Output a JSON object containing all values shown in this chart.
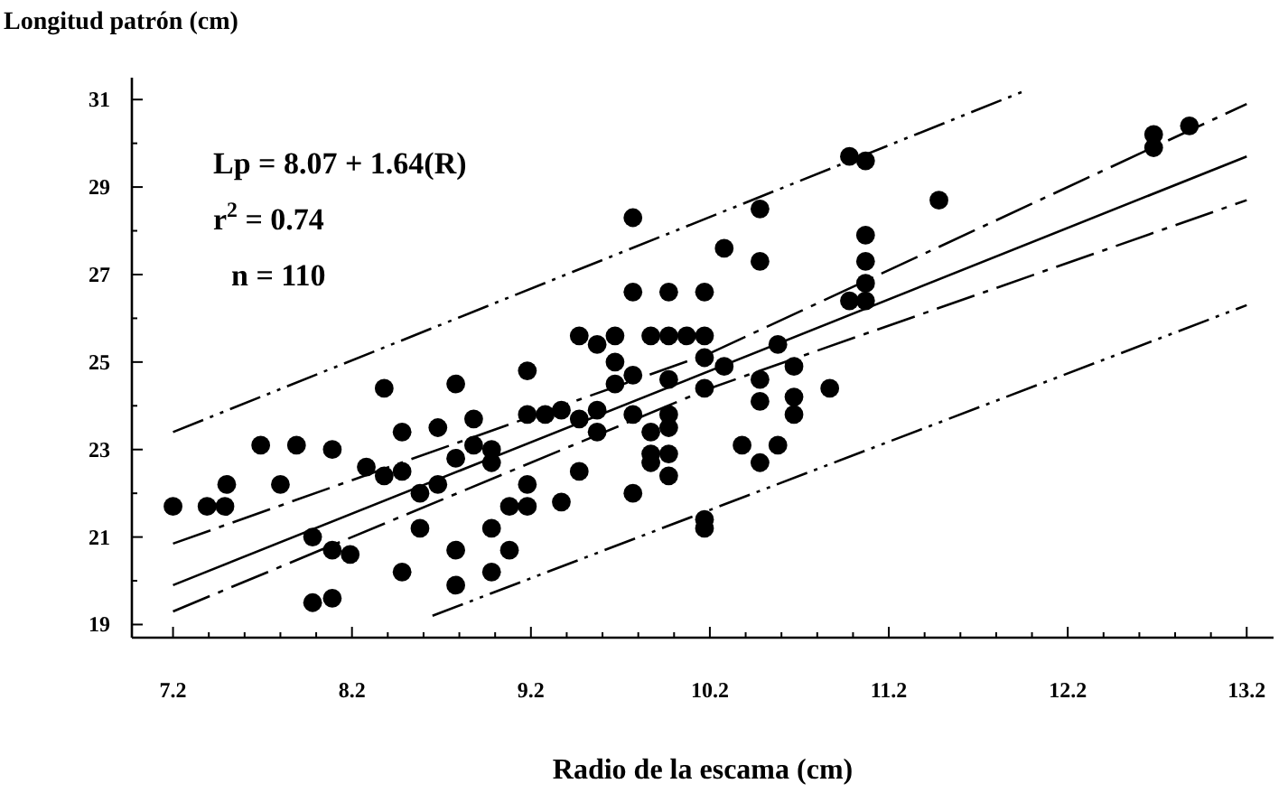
{
  "chart_data": {
    "type": "scatter",
    "ylabel": "Longitud patrón (cm)",
    "xlabel": "Radio de la escama (cm)",
    "annotations": [
      "Lp = 8.07 + 1.64(R)",
      "r$^{2}$ = 0.74",
      "n = 110"
    ],
    "xlim": [
      6.97,
      13.35
    ],
    "ylim": [
      18.7,
      31.5
    ],
    "xticks": [
      7.2,
      {
        "value": 7.4,
        "label": null
      },
      {
        "value": 7.6,
        "label": null
      },
      {
        "value": 7.8,
        "label": null
      },
      {
        "value": 8.0,
        "label": null
      },
      8.2,
      {
        "value": 8.4,
        "label": null
      },
      {
        "value": 8.6,
        "label": null
      },
      {
        "value": 8.8,
        "label": null
      },
      {
        "value": 9.0,
        "label": null
      },
      9.2,
      {
        "value": 9.4,
        "label": null
      },
      {
        "value": 9.6,
        "label": null
      },
      {
        "value": 9.8,
        "label": null
      },
      {
        "value": 10.0,
        "label": null
      },
      10.2,
      {
        "value": 10.4,
        "label": null
      },
      {
        "value": 10.6,
        "label": null
      },
      {
        "value": 10.8,
        "label": null
      },
      {
        "value": 11.0,
        "label": null
      },
      11.2,
      {
        "value": 11.4,
        "label": null
      },
      {
        "value": 11.6,
        "label": null
      },
      {
        "value": 11.8,
        "label": null
      },
      {
        "value": 12.0,
        "label": null
      },
      12.2,
      {
        "value": 12.4,
        "label": null
      },
      {
        "value": 12.6,
        "label": null
      },
      {
        "value": 12.8,
        "label": null
      },
      {
        "value": 13.0,
        "label": null
      },
      13.2
    ],
    "yticks": [
      19,
      {
        "value": 20,
        "label": null
      },
      21,
      {
        "value": 22,
        "label": null
      },
      23,
      {
        "value": 24,
        "label": null
      },
      25,
      {
        "value": 26,
        "label": null
      },
      27,
      {
        "value": 28,
        "label": null
      },
      29,
      {
        "value": 30,
        "label": null
      },
      31
    ],
    "grid": false,
    "marker": "circle",
    "series": [
      {
        "color": "#000000",
        "x": [
          7.2,
          7.39,
          7.49,
          7.5,
          7.69,
          7.8,
          7.89,
          7.98,
          7.98,
          8.09,
          8.09,
          8.09,
          8.19,
          8.28,
          8.38,
          8.38,
          8.48,
          8.48,
          8.48,
          8.58,
          8.58,
          8.68,
          8.68,
          8.78,
          8.78,
          8.78,
          8.78,
          8.88,
          8.88,
          8.98,
          8.98,
          8.98,
          8.98,
          9.08,
          9.08,
          9.18,
          9.18,
          9.18,
          9.18,
          9.28,
          9.37,
          9.37,
          9.47,
          9.47,
          9.47,
          9.57,
          9.57,
          9.57,
          9.67,
          9.67,
          9.67,
          9.77,
          9.77,
          9.77,
          9.77,
          9.77,
          9.87,
          9.87,
          9.87,
          9.87,
          9.97,
          9.97,
          9.97,
          9.97,
          9.97,
          9.97,
          9.97,
          10.07,
          10.17,
          10.17,
          10.17,
          10.17,
          10.17,
          10.17,
          10.28,
          10.28,
          10.38,
          10.48,
          10.48,
          10.48,
          10.48,
          10.48,
          10.58,
          10.58,
          10.67,
          10.67,
          10.67,
          10.87,
          10.98,
          10.98,
          11.07,
          11.07,
          11.07,
          11.07,
          11.07,
          11.48,
          12.68,
          12.68,
          12.88
        ],
        "values": [
          21.7,
          21.7,
          21.7,
          22.2,
          23.1,
          22.2,
          23.1,
          21.0,
          19.5,
          19.6,
          23.0,
          20.7,
          20.6,
          22.6,
          22.4,
          24.4,
          23.4,
          22.5,
          20.2,
          22.0,
          21.2,
          22.2,
          23.5,
          24.5,
          22.8,
          20.7,
          19.9,
          23.7,
          23.1,
          23.0,
          22.7,
          21.2,
          20.2,
          21.7,
          20.7,
          24.8,
          23.8,
          22.2,
          21.7,
          23.8,
          23.9,
          21.8,
          25.6,
          23.7,
          22.5,
          25.4,
          23.9,
          23.4,
          25.6,
          25.0,
          24.5,
          28.3,
          26.6,
          24.7,
          23.8,
          22.0,
          25.6,
          23.4,
          22.9,
          22.7,
          26.6,
          25.6,
          24.6,
          23.8,
          23.5,
          22.9,
          22.4,
          25.6,
          26.6,
          25.6,
          25.1,
          24.4,
          21.4,
          21.2,
          27.6,
          24.9,
          23.1,
          28.5,
          27.3,
          24.6,
          24.1,
          22.7,
          25.4,
          23.1,
          24.9,
          24.2,
          23.8,
          24.4,
          29.7,
          26.4,
          29.6,
          27.9,
          27.3,
          26.8,
          26.4,
          28.7,
          30.2,
          29.9,
          30.4
        ]
      },
      {
        "type": "line",
        "color": "#000000",
        "line_style": "solid",
        "marker": "none",
        "x": [
          7.2,
          13.2
        ],
        "values": [
          19.9,
          29.7
        ]
      },
      {
        "type": "line",
        "color": "#000000",
        "line_style": "dashed",
        "marker": "none",
        "x": [
          7.2,
          10.2,
          13.2
        ],
        "values": [
          20.85,
          25.2,
          30.9
        ]
      },
      {
        "type": "line",
        "color": "#000000",
        "line_style": "dashed",
        "marker": "none",
        "x": [
          7.2,
          10.2,
          13.2
        ],
        "values": [
          19.3,
          24.4,
          28.7
        ]
      },
      {
        "type": "line",
        "color": "#000000",
        "line_style": "dotted",
        "marker": "none",
        "x": [
          7.2,
          11.96
        ],
        "values": [
          23.4,
          31.2
        ]
      },
      {
        "type": "line",
        "color": "#000000",
        "line_style": "dotted",
        "marker": "none",
        "x": [
          8.65,
          13.2
        ],
        "values": [
          19.2,
          26.3
        ]
      }
    ]
  }
}
